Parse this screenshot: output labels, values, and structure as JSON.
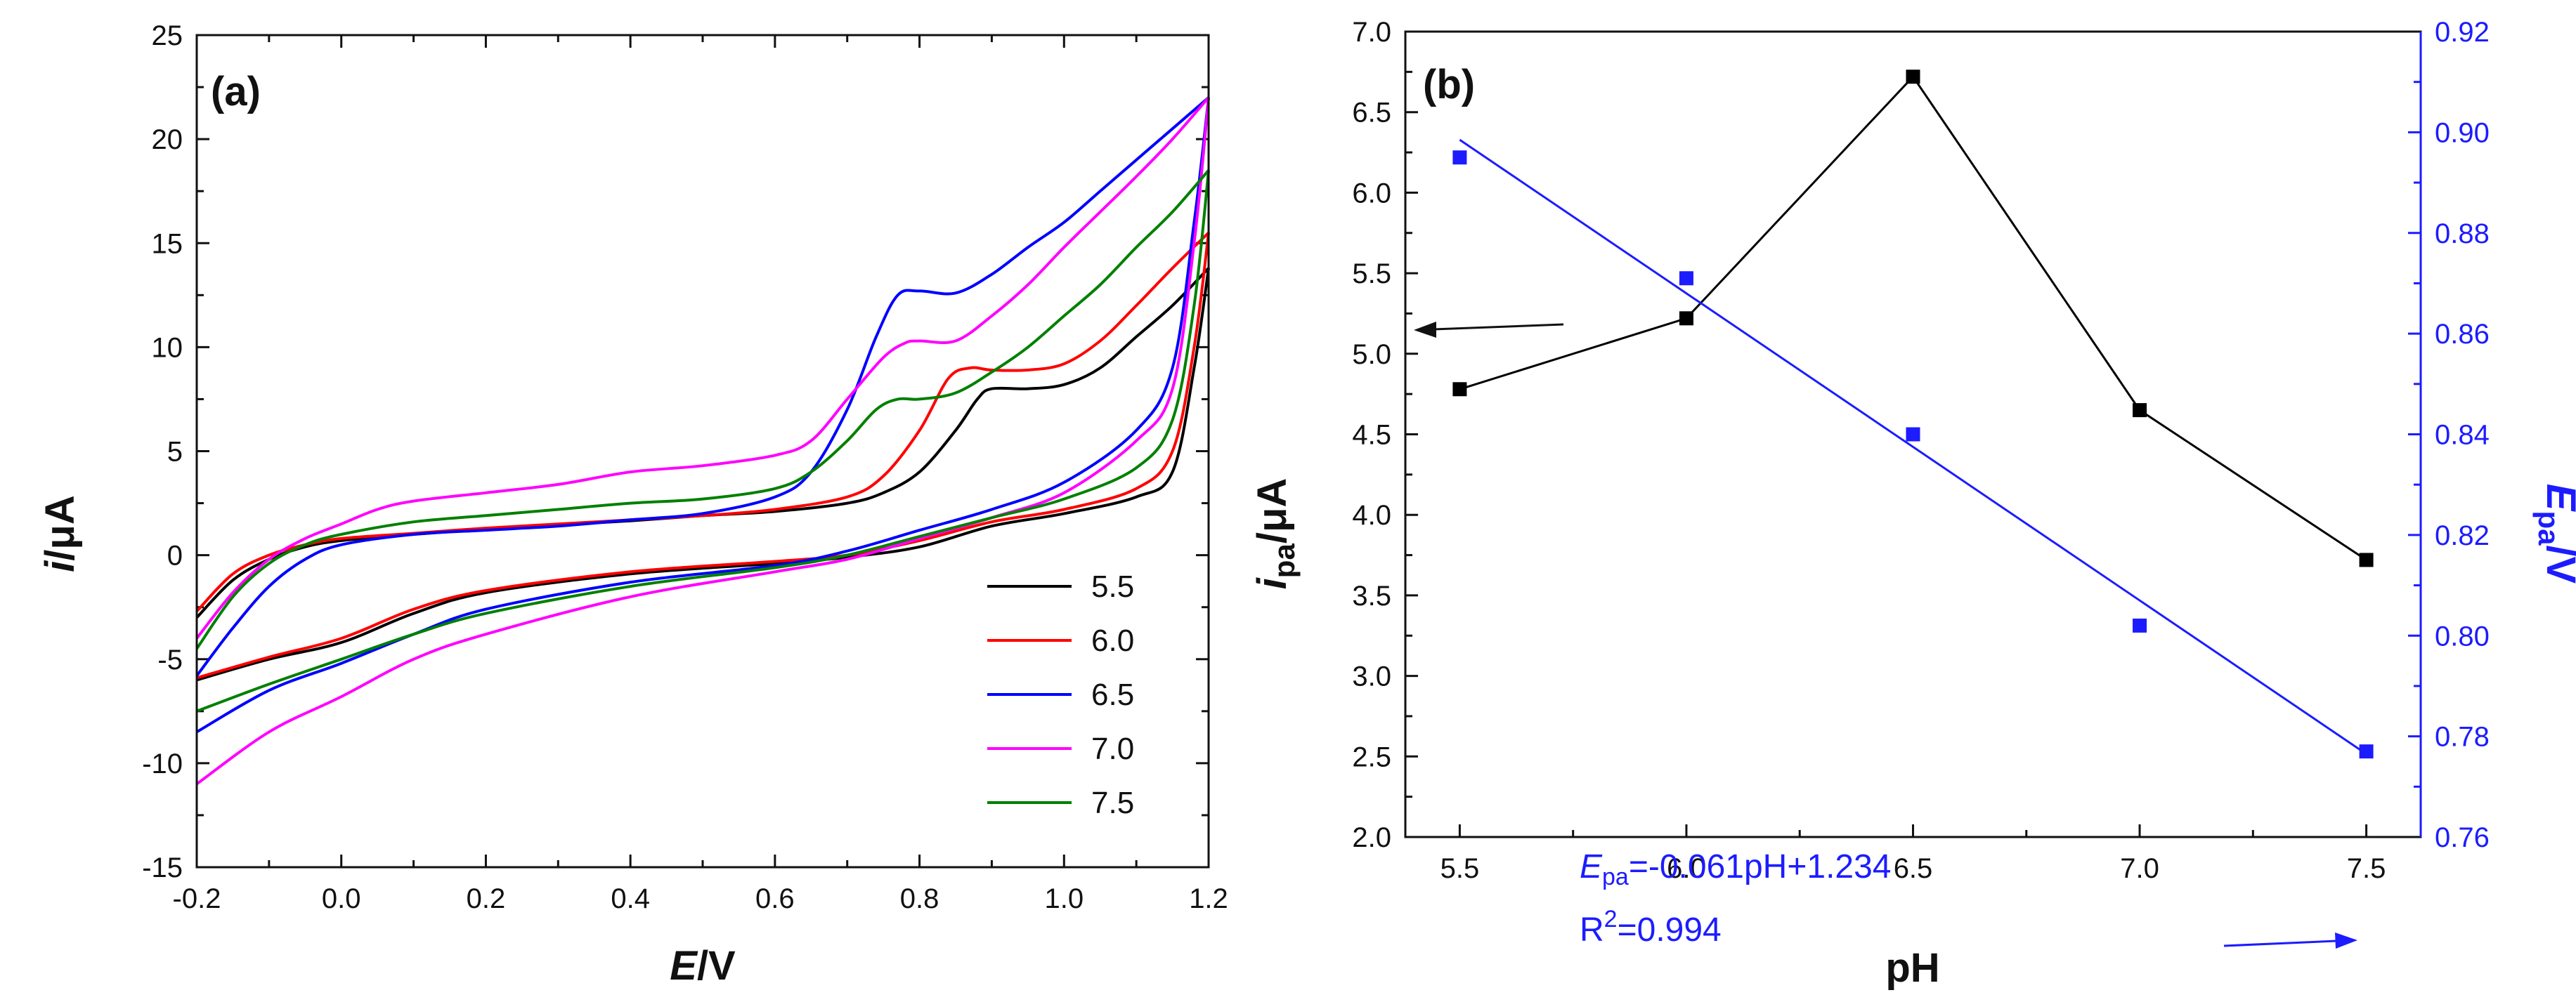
{
  "chart_data": [
    {
      "type": "line",
      "panel_label": "(a)",
      "xlabel_italic": "E",
      "xlabel_rest": "/V",
      "ylabel_italic": "i",
      "ylabel_rest": "/μA",
      "xlim": [
        -0.2,
        1.2
      ],
      "ylim": [
        -15,
        25
      ],
      "x_ticks": [
        "-0.2",
        "0.0",
        "0.2",
        "0.4",
        "0.6",
        "0.8",
        "1.0",
        "1.2"
      ],
      "y_ticks": [
        "-15",
        "-10",
        "-5",
        "0",
        "5",
        "10",
        "15",
        "20",
        "25"
      ],
      "legend_position": "bottom-right",
      "series": [
        {
          "name": "5.5",
          "color": "#000000",
          "forward": [
            [
              -0.2,
              -3.0
            ],
            [
              -0.15,
              -1.2
            ],
            [
              -0.1,
              -0.2
            ],
            [
              -0.05,
              0.4
            ],
            [
              0.0,
              0.7
            ],
            [
              0.1,
              1.0
            ],
            [
              0.2,
              1.25
            ],
            [
              0.3,
              1.45
            ],
            [
              0.4,
              1.65
            ],
            [
              0.5,
              1.9
            ],
            [
              0.6,
              2.1
            ],
            [
              0.7,
              2.5
            ],
            [
              0.75,
              3.0
            ],
            [
              0.8,
              4.0
            ],
            [
              0.85,
              6.0
            ],
            [
              0.88,
              7.5
            ],
            [
              0.9,
              8.0
            ],
            [
              0.95,
              8.0
            ],
            [
              1.0,
              8.2
            ],
            [
              1.05,
              9.0
            ],
            [
              1.1,
              10.5
            ],
            [
              1.15,
              12.0
            ],
            [
              1.2,
              13.8
            ]
          ],
          "reverse": [
            [
              1.2,
              13.8
            ],
            [
              1.18,
              9.0
            ],
            [
              1.15,
              4.0
            ],
            [
              1.1,
              2.8
            ],
            [
              1.0,
              2.0
            ],
            [
              0.9,
              1.4
            ],
            [
              0.8,
              0.4
            ],
            [
              0.7,
              -0.1
            ],
            [
              0.6,
              -0.4
            ],
            [
              0.4,
              -0.9
            ],
            [
              0.2,
              -1.8
            ],
            [
              0.1,
              -2.8
            ],
            [
              0.0,
              -4.2
            ],
            [
              -0.1,
              -5.0
            ],
            [
              -0.2,
              -6.0
            ]
          ]
        },
        {
          "name": "6.0",
          "color": "#ff0000",
          "forward": [
            [
              -0.2,
              -2.7
            ],
            [
              -0.15,
              -0.9
            ],
            [
              -0.1,
              0.0
            ],
            [
              -0.05,
              0.5
            ],
            [
              0.0,
              0.8
            ],
            [
              0.1,
              1.05
            ],
            [
              0.2,
              1.3
            ],
            [
              0.3,
              1.5
            ],
            [
              0.4,
              1.7
            ],
            [
              0.5,
              1.9
            ],
            [
              0.6,
              2.2
            ],
            [
              0.7,
              2.8
            ],
            [
              0.75,
              3.8
            ],
            [
              0.8,
              6.0
            ],
            [
              0.84,
              8.5
            ],
            [
              0.87,
              9.0
            ],
            [
              0.9,
              8.9
            ],
            [
              0.95,
              8.9
            ],
            [
              1.0,
              9.2
            ],
            [
              1.05,
              10.3
            ],
            [
              1.1,
              12.0
            ],
            [
              1.15,
              13.8
            ],
            [
              1.2,
              15.5
            ]
          ],
          "reverse": [
            [
              1.2,
              15.5
            ],
            [
              1.18,
              10.0
            ],
            [
              1.15,
              5.0
            ],
            [
              1.1,
              3.2
            ],
            [
              1.0,
              2.2
            ],
            [
              0.9,
              1.6
            ],
            [
              0.8,
              0.7
            ],
            [
              0.7,
              0.0
            ],
            [
              0.6,
              -0.3
            ],
            [
              0.4,
              -0.8
            ],
            [
              0.2,
              -1.7
            ],
            [
              0.1,
              -2.6
            ],
            [
              0.0,
              -4.0
            ],
            [
              -0.1,
              -4.9
            ],
            [
              -0.2,
              -5.9
            ]
          ]
        },
        {
          "name": "6.5",
          "color": "#0000ff",
          "forward": [
            [
              -0.2,
              -5.8
            ],
            [
              -0.15,
              -3.5
            ],
            [
              -0.1,
              -1.5
            ],
            [
              -0.05,
              -0.2
            ],
            [
              0.0,
              0.5
            ],
            [
              0.1,
              1.0
            ],
            [
              0.2,
              1.2
            ],
            [
              0.3,
              1.4
            ],
            [
              0.4,
              1.7
            ],
            [
              0.5,
              2.0
            ],
            [
              0.6,
              2.8
            ],
            [
              0.65,
              4.0
            ],
            [
              0.7,
              7.0
            ],
            [
              0.74,
              10.5
            ],
            [
              0.77,
              12.5
            ],
            [
              0.8,
              12.7
            ],
            [
              0.85,
              12.6
            ],
            [
              0.9,
              13.5
            ],
            [
              0.95,
              14.8
            ],
            [
              1.0,
              16.0
            ],
            [
              1.05,
              17.5
            ],
            [
              1.1,
              19.0
            ],
            [
              1.15,
              20.5
            ],
            [
              1.2,
              22.0
            ]
          ],
          "reverse": [
            [
              1.2,
              22.0
            ],
            [
              1.18,
              16.0
            ],
            [
              1.15,
              9.0
            ],
            [
              1.1,
              6.0
            ],
            [
              1.0,
              3.5
            ],
            [
              0.9,
              2.2
            ],
            [
              0.8,
              1.2
            ],
            [
              0.7,
              0.2
            ],
            [
              0.6,
              -0.5
            ],
            [
              0.4,
              -1.3
            ],
            [
              0.2,
              -2.6
            ],
            [
              0.1,
              -3.8
            ],
            [
              0.0,
              -5.2
            ],
            [
              -0.1,
              -6.5
            ],
            [
              -0.2,
              -8.5
            ]
          ]
        },
        {
          "name": "7.0",
          "color": "#ff00ff",
          "forward": [
            [
              -0.2,
              -4.0
            ],
            [
              -0.15,
              -1.8
            ],
            [
              -0.1,
              -0.2
            ],
            [
              -0.05,
              0.8
            ],
            [
              0.0,
              1.5
            ],
            [
              0.05,
              2.2
            ],
            [
              0.1,
              2.6
            ],
            [
              0.2,
              3.0
            ],
            [
              0.3,
              3.4
            ],
            [
              0.4,
              4.0
            ],
            [
              0.5,
              4.3
            ],
            [
              0.6,
              4.8
            ],
            [
              0.65,
              5.5
            ],
            [
              0.7,
              7.5
            ],
            [
              0.75,
              9.5
            ],
            [
              0.78,
              10.2
            ],
            [
              0.8,
              10.3
            ],
            [
              0.85,
              10.3
            ],
            [
              0.9,
              11.5
            ],
            [
              0.95,
              13.0
            ],
            [
              1.0,
              14.8
            ],
            [
              1.05,
              16.5
            ],
            [
              1.1,
              18.2
            ],
            [
              1.15,
              20.0
            ],
            [
              1.2,
              22.0
            ]
          ],
          "reverse": [
            [
              1.2,
              22.0
            ],
            [
              1.18,
              15.0
            ],
            [
              1.15,
              8.0
            ],
            [
              1.1,
              5.5
            ],
            [
              1.0,
              3.0
            ],
            [
              0.9,
              1.8
            ],
            [
              0.8,
              0.8
            ],
            [
              0.7,
              -0.2
            ],
            [
              0.6,
              -0.8
            ],
            [
              0.4,
              -2.0
            ],
            [
              0.2,
              -3.8
            ],
            [
              0.1,
              -5.0
            ],
            [
              0.0,
              -6.8
            ],
            [
              -0.1,
              -8.5
            ],
            [
              -0.2,
              -11.0
            ]
          ]
        },
        {
          "name": "7.5",
          "color": "#008000",
          "forward": [
            [
              -0.2,
              -4.5
            ],
            [
              -0.15,
              -2.0
            ],
            [
              -0.1,
              -0.4
            ],
            [
              -0.05,
              0.5
            ],
            [
              0.0,
              1.0
            ],
            [
              0.1,
              1.6
            ],
            [
              0.2,
              1.9
            ],
            [
              0.3,
              2.2
            ],
            [
              0.4,
              2.5
            ],
            [
              0.5,
              2.7
            ],
            [
              0.6,
              3.2
            ],
            [
              0.65,
              4.0
            ],
            [
              0.7,
              5.5
            ],
            [
              0.74,
              7.0
            ],
            [
              0.77,
              7.5
            ],
            [
              0.8,
              7.5
            ],
            [
              0.85,
              7.8
            ],
            [
              0.9,
              8.8
            ],
            [
              0.95,
              10.0
            ],
            [
              1.0,
              11.5
            ],
            [
              1.05,
              13.0
            ],
            [
              1.1,
              14.8
            ],
            [
              1.15,
              16.5
            ],
            [
              1.2,
              18.5
            ]
          ],
          "reverse": [
            [
              1.2,
              18.5
            ],
            [
              1.18,
              12.0
            ],
            [
              1.15,
              6.5
            ],
            [
              1.1,
              4.2
            ],
            [
              1.0,
              2.7
            ],
            [
              0.9,
              1.8
            ],
            [
              0.8,
              0.9
            ],
            [
              0.7,
              0.0
            ],
            [
              0.6,
              -0.6
            ],
            [
              0.4,
              -1.5
            ],
            [
              0.2,
              -2.8
            ],
            [
              0.1,
              -3.8
            ],
            [
              0.0,
              -5.0
            ],
            [
              -0.1,
              -6.2
            ],
            [
              -0.2,
              -7.5
            ]
          ]
        }
      ]
    },
    {
      "type": "line",
      "panel_label": "(b)",
      "xlabel": "pH",
      "xlim": [
        5.38,
        7.62
      ],
      "x_ticks": [
        "5.5",
        "6.0",
        "6.5",
        "7.0",
        "7.5"
      ],
      "left_axis": {
        "label_italic": "i",
        "label_sub": "pa",
        "label_rest": "/μA",
        "ylim": [
          2.0,
          7.0
        ],
        "ticks": [
          "2.0",
          "2.5",
          "3.0",
          "3.5",
          "4.0",
          "4.5",
          "5.0",
          "5.5",
          "6.0",
          "6.5",
          "7.0"
        ]
      },
      "right_axis": {
        "label_italic": "E",
        "label_sub": "pa",
        "label_rest": "/V",
        "ylim": [
          0.76,
          0.92
        ],
        "ticks": [
          "0.76",
          "0.78",
          "0.80",
          "0.82",
          "0.84",
          "0.86",
          "0.88",
          "0.90",
          "0.92"
        ],
        "color": "#1c1cff"
      },
      "series": [
        {
          "name": "ipa",
          "axis": "left",
          "color": "#000000",
          "x": [
            5.5,
            6.0,
            6.5,
            7.0,
            7.5
          ],
          "values": [
            4.78,
            5.22,
            6.72,
            4.65,
            3.72
          ]
        },
        {
          "name": "Epa",
          "axis": "right",
          "color": "#1c1cff",
          "x": [
            5.5,
            6.0,
            6.5,
            7.0,
            7.5
          ],
          "values": [
            0.895,
            0.871,
            0.84,
            0.802,
            0.777
          ],
          "fit": {
            "slope": -0.061,
            "intercept": 1.234
          }
        }
      ],
      "equation": {
        "prefix_italic": "E",
        "prefix_sub": "pa",
        "rest": "=-0.061pH+1.234",
        "r2_prefix": "R",
        "r2_sup": "2",
        "r2_rest": "=0.994"
      }
    }
  ]
}
